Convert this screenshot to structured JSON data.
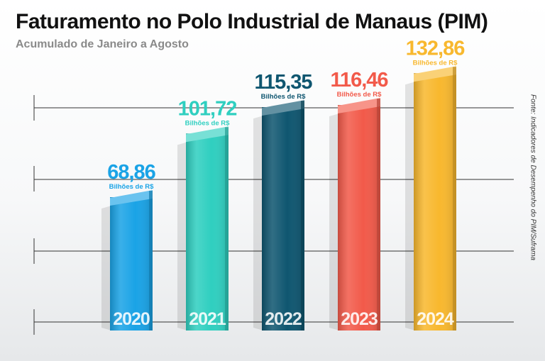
{
  "header": {
    "title": "Faturamento no Polo Industrial de Manaus (PIM)",
    "subtitle": "Acumulado de Janeiro a Agosto"
  },
  "source": "Fonte: Indicadores de Desempenho do PIM/Suframa",
  "chart_data": {
    "type": "bar",
    "title": "Faturamento no Polo Industrial de Manaus (PIM)",
    "subtitle": "Acumulado de Janeiro a Agosto",
    "categories": [
      "2020",
      "2021",
      "2022",
      "2023",
      "2024"
    ],
    "values": [
      68.86,
      101.72,
      115.35,
      116.46,
      132.86
    ],
    "value_labels": [
      "68,86",
      "101,72",
      "115,35",
      "116,46",
      "132,86"
    ],
    "unit_label": "Bilhões de R$",
    "colors": [
      "#1aa3e6",
      "#2fcfc0",
      "#0f5670",
      "#f25a4a",
      "#f8b82e"
    ],
    "grid": true,
    "ylim": [
      0,
      140
    ],
    "legend": "none"
  }
}
